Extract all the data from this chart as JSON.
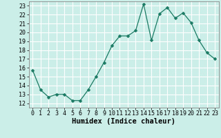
{
  "x": [
    0,
    1,
    2,
    3,
    4,
    5,
    6,
    7,
    8,
    9,
    10,
    11,
    12,
    13,
    14,
    15,
    16,
    17,
    18,
    19,
    20,
    21,
    22,
    23
  ],
  "y": [
    15.7,
    13.5,
    12.7,
    13.0,
    13.0,
    12.3,
    12.3,
    13.5,
    15.0,
    16.6,
    18.5,
    19.6,
    19.6,
    20.2,
    23.2,
    19.1,
    22.1,
    22.8,
    21.6,
    22.2,
    21.1,
    19.1,
    17.7,
    17.0
  ],
  "line_color": "#1a7a63",
  "marker": "D",
  "marker_size": 2.5,
  "bg_color": "#cceee8",
  "grid_color": "#ffffff",
  "xlabel": "Humidex (Indice chaleur)",
  "ylim": [
    11.5,
    23.5
  ],
  "xlim": [
    -0.5,
    23.5
  ],
  "yticks": [
    12,
    13,
    14,
    15,
    16,
    17,
    18,
    19,
    20,
    21,
    22,
    23
  ],
  "xticks": [
    0,
    1,
    2,
    3,
    4,
    5,
    6,
    7,
    8,
    9,
    10,
    11,
    12,
    13,
    14,
    15,
    16,
    17,
    18,
    19,
    20,
    21,
    22,
    23
  ],
  "tick_fontsize": 6,
  "xlabel_fontsize": 7.5
}
